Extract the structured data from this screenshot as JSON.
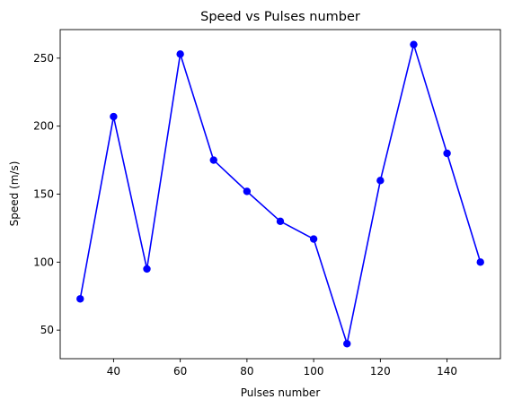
{
  "chart_data": {
    "type": "line",
    "title": "Speed vs Pulses number",
    "xlabel": "Pulses number",
    "ylabel": "Speed (m/s)",
    "x": [
      30,
      40,
      50,
      60,
      70,
      80,
      90,
      100,
      110,
      120,
      130,
      140,
      150
    ],
    "series": [
      {
        "values": [
          73,
          207,
          95,
          253,
          175,
          152,
          130,
          117,
          40,
          160,
          260,
          180,
          100
        ],
        "color": "#0000ff",
        "marker": "circle"
      }
    ],
    "xticks": [
      40,
      60,
      80,
      100,
      120,
      140
    ],
    "yticks": [
      50,
      100,
      150,
      200,
      250
    ],
    "xlim": [
      24,
      156
    ],
    "ylim": [
      29,
      271
    ],
    "grid": false,
    "legend": false
  }
}
